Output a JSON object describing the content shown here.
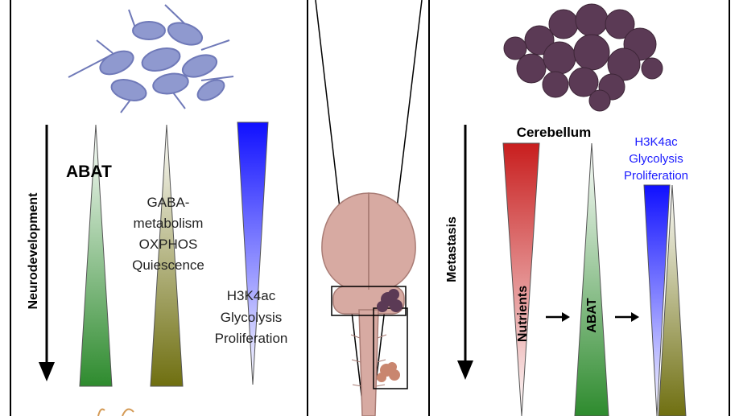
{
  "left_panel": {
    "axis_label": "Neurodevelopment",
    "abat": "ABAT",
    "green_process": [
      "GABA-",
      "metabolism",
      "OXPHOS",
      "Quiescence"
    ],
    "blue_process": [
      "H3K4ac",
      "Glycolysis",
      "Proliferation"
    ]
  },
  "right_panel": {
    "axis_label": "Metastasis",
    "cerebellum": "Cerebellum",
    "nutrients": "Nutrients",
    "abat": "ABAT",
    "blue_process": [
      "H3K4ac",
      "Glycolysis",
      "Proliferation"
    ]
  },
  "colors": {
    "neuron": "#8f99cf",
    "tumor": "#5b3a55",
    "green": "#2e8b2e",
    "olive": "#6f6f10",
    "blue": "#1a1aff",
    "red": "#c81e1e",
    "brain": "#d7aaa2"
  }
}
